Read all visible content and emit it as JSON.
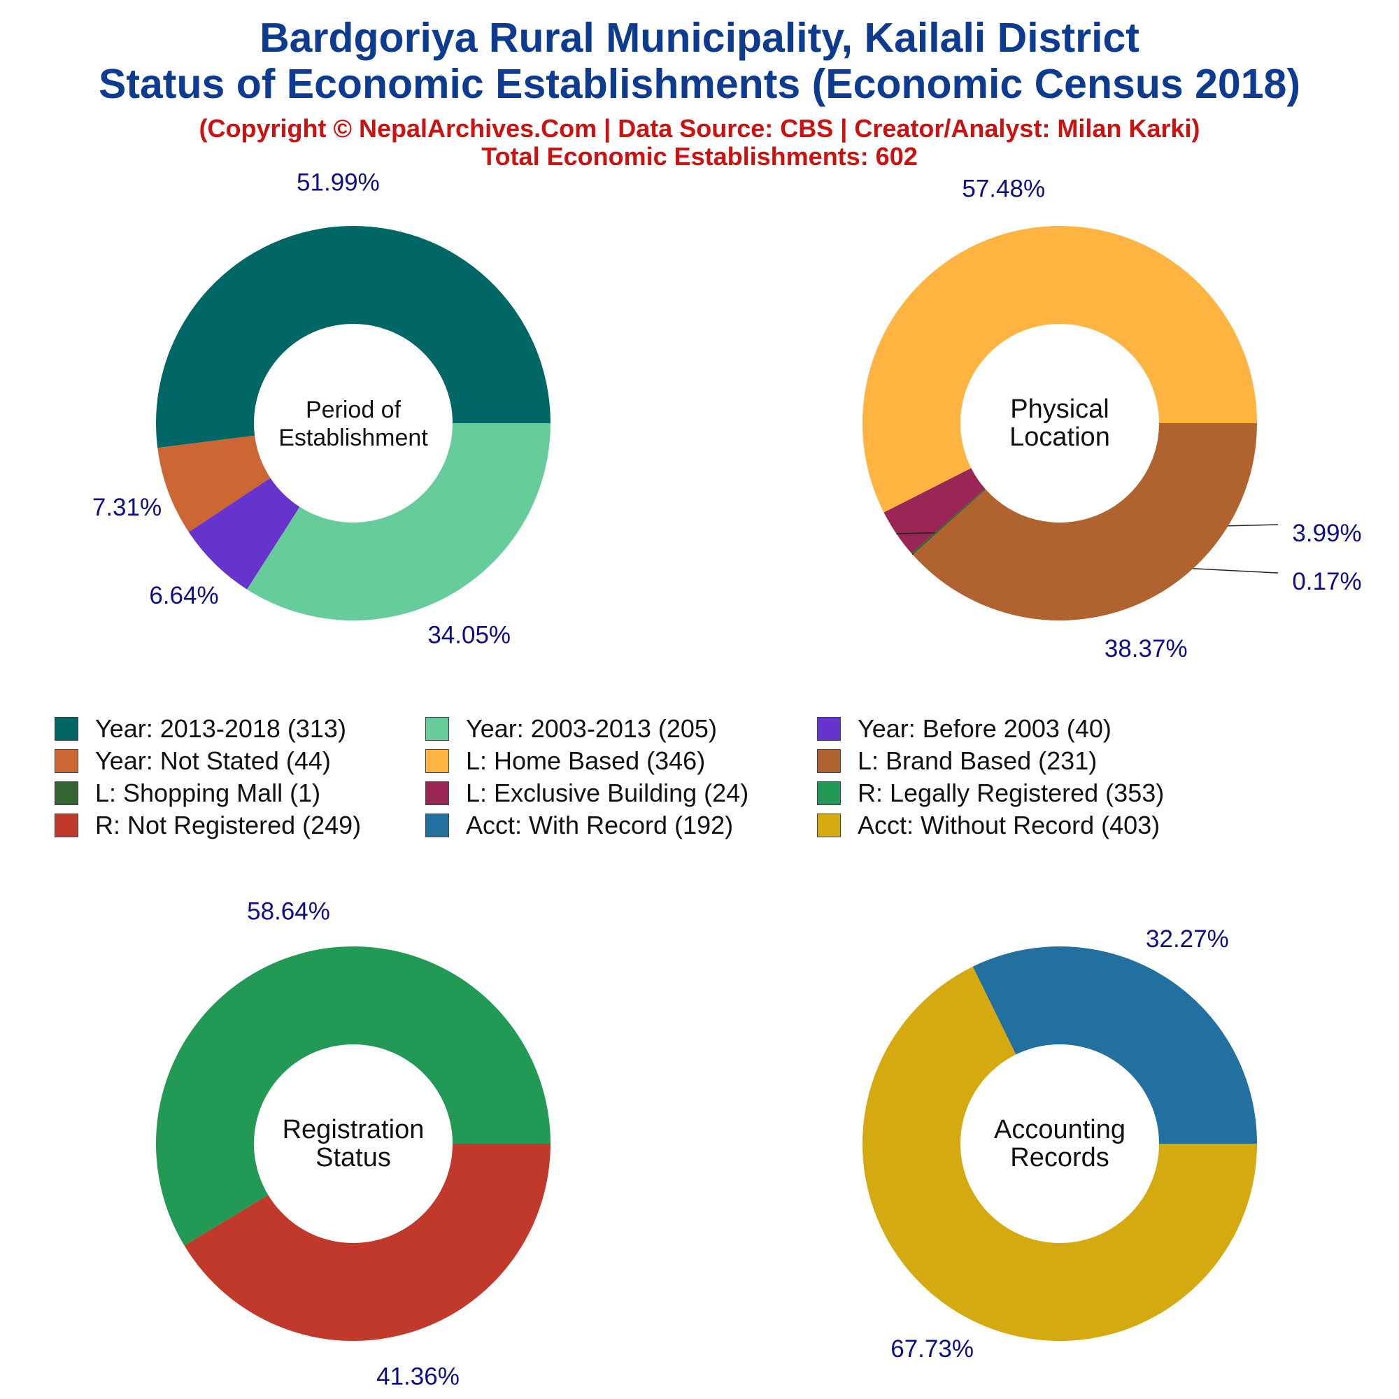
{
  "header": {
    "title_line1": "Bardgoriya Rural Municipality, Kailali District",
    "title_line2": "Status of Economic Establishments (Economic Census 2018)",
    "copyright": "(Copyright © NepalArchives.Com | Data Source: CBS | Creator/Analyst: Milan Karki)",
    "total": "Total Economic Establishments: 602"
  },
  "colors": {
    "title": "#0d3b8f",
    "subtitle": "#cc1111",
    "pct_label": "#0d0d8c"
  },
  "legend": [
    {
      "label": "Year: 2013-2018 (313)",
      "color": "#006666"
    },
    {
      "label": "Year: 2003-2013 (205)",
      "color": "#66cc99"
    },
    {
      "label": "Year: Before 2003 (40)",
      "color": "#6633cc"
    },
    {
      "label": "Year: Not Stated (44)",
      "color": "#cc6633"
    },
    {
      "label": "L: Home Based (346)",
      "color": "#ffb340"
    },
    {
      "label": "L: Brand Based (231)",
      "color": "#b0632e"
    },
    {
      "label": "L: Shopping Mall (1)",
      "color": "#336633"
    },
    {
      "label": "L: Exclusive Building (24)",
      "color": "#992655"
    },
    {
      "label": "R: Legally Registered (353)",
      "color": "#229955"
    },
    {
      "label": "R: Not Registered (249)",
      "color": "#c0392b"
    },
    {
      "label": "Acct: With Record (192)",
      "color": "#2270a0"
    },
    {
      "label": "Acct: Without Record (403)",
      "color": "#d4aa10"
    }
  ],
  "chart_data": [
    {
      "type": "pie",
      "center_label": [
        "Period of",
        "Establishment"
      ],
      "slices": [
        {
          "name": "Year: 2013-2018",
          "value": 313,
          "pct": "51.99%",
          "color": "#006666"
        },
        {
          "name": "Year: Not Stated",
          "value": 44,
          "pct": "7.31%",
          "color": "#cc6633"
        },
        {
          "name": "Year: Before 2003",
          "value": 40,
          "pct": "6.64%",
          "color": "#6633cc"
        },
        {
          "name": "Year: 2003-2013",
          "value": 205,
          "pct": "34.05%",
          "color": "#66cc99"
        }
      ]
    },
    {
      "type": "pie",
      "center_label": [
        "Physical",
        "Location"
      ],
      "slices": [
        {
          "name": "L: Home Based",
          "value": 346,
          "pct": "57.48%",
          "color": "#ffb340"
        },
        {
          "name": "L: Exclusive Building",
          "value": 24,
          "pct": "3.99%",
          "color": "#992655"
        },
        {
          "name": "L: Shopping Mall",
          "value": 1,
          "pct": "0.17%",
          "color": "#336633"
        },
        {
          "name": "L: Brand Based",
          "value": 231,
          "pct": "38.37%",
          "color": "#b0632e"
        }
      ]
    },
    {
      "type": "pie",
      "center_label": [
        "Registration",
        "Status"
      ],
      "slices": [
        {
          "name": "R: Legally Registered",
          "value": 353,
          "pct": "58.64%",
          "color": "#229955"
        },
        {
          "name": "R: Not Registered",
          "value": 249,
          "pct": "41.36%",
          "color": "#c0392b"
        }
      ]
    },
    {
      "type": "pie",
      "center_label": [
        "Accounting",
        "Records"
      ],
      "slices": [
        {
          "name": "Acct: With Record",
          "value": 192,
          "pct": "32.27%",
          "color": "#2270a0"
        },
        {
          "name": "Acct: Without Record",
          "value": 403,
          "pct": "67.73%",
          "color": "#d4aa10"
        }
      ]
    }
  ]
}
